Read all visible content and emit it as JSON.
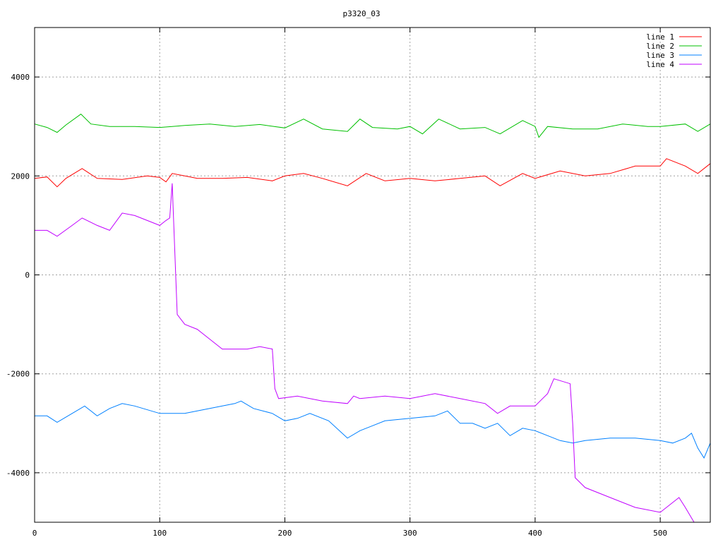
{
  "chart_data": {
    "type": "line",
    "title": "p3320_03",
    "xlabel": "",
    "ylabel": "",
    "xlim": [
      0,
      540
    ],
    "ylim": [
      -5000,
      5000
    ],
    "xticks": [
      0,
      100,
      200,
      300,
      400,
      500
    ],
    "yticks": [
      -4000,
      -2000,
      0,
      2000,
      4000
    ],
    "grid": true,
    "legend_position": "top-right",
    "series": [
      {
        "name": "line 1",
        "color": "#ff0000",
        "x": [
          0,
          10,
          18,
          25,
          38,
          50,
          70,
          90,
          100,
          105,
          110,
          130,
          150,
          170,
          190,
          200,
          215,
          230,
          250,
          265,
          280,
          300,
          320,
          340,
          360,
          372,
          390,
          400,
          420,
          440,
          460,
          480,
          500,
          505,
          520,
          530,
          540
        ],
        "y": [
          1950,
          1980,
          1780,
          1950,
          2150,
          1950,
          1930,
          2000,
          1970,
          1880,
          2050,
          1950,
          1950,
          1970,
          1900,
          2000,
          2050,
          1950,
          1800,
          2050,
          1900,
          1950,
          1900,
          1950,
          2000,
          1800,
          2050,
          1950,
          2100,
          2000,
          2050,
          2200,
          2200,
          2350,
          2200,
          2050,
          2250
        ]
      },
      {
        "name": "line 2",
        "color": "#00c000",
        "x": [
          0,
          10,
          18,
          25,
          37,
          45,
          60,
          80,
          100,
          120,
          140,
          160,
          180,
          200,
          215,
          230,
          250,
          260,
          270,
          290,
          300,
          310,
          323,
          340,
          360,
          372,
          390,
          400,
          403,
          410,
          430,
          450,
          470,
          490,
          500,
          520,
          530,
          540
        ],
        "y": [
          3050,
          2980,
          2880,
          3030,
          3250,
          3050,
          3000,
          3000,
          2980,
          3020,
          3050,
          3000,
          3040,
          2970,
          3150,
          2950,
          2900,
          3150,
          2980,
          2950,
          3000,
          2850,
          3150,
          2950,
          2980,
          2850,
          3120,
          3000,
          2780,
          3000,
          2950,
          2950,
          3050,
          3000,
          3000,
          3050,
          2900,
          3050
        ]
      },
      {
        "name": "line 3",
        "color": "#0080ff",
        "x": [
          0,
          10,
          18,
          30,
          40,
          50,
          60,
          70,
          80,
          100,
          120,
          140,
          150,
          160,
          165,
          175,
          190,
          200,
          210,
          220,
          235,
          250,
          260,
          270,
          280,
          300,
          320,
          330,
          340,
          350,
          360,
          370,
          380,
          390,
          400,
          410,
          420,
          430,
          440,
          460,
          480,
          500,
          510,
          520,
          525,
          530,
          535,
          540
        ],
        "y": [
          -2850,
          -2850,
          -2980,
          -2800,
          -2650,
          -2850,
          -2700,
          -2600,
          -2650,
          -2800,
          -2800,
          -2700,
          -2650,
          -2600,
          -2550,
          -2700,
          -2800,
          -2950,
          -2900,
          -2800,
          -2950,
          -3300,
          -3150,
          -3050,
          -2950,
          -2900,
          -2850,
          -2750,
          -3000,
          -3000,
          -3100,
          -3000,
          -3250,
          -3100,
          -3150,
          -3250,
          -3350,
          -3400,
          -3350,
          -3300,
          -3300,
          -3350,
          -3400,
          -3300,
          -3200,
          -3500,
          -3700,
          -3400
        ]
      },
      {
        "name": "line 4",
        "color": "#c000ff",
        "x": [
          0,
          10,
          18,
          30,
          38,
          50,
          60,
          70,
          80,
          90,
          100,
          105,
          108,
          110,
          112,
          114,
          120,
          130,
          140,
          150,
          170,
          180,
          190,
          192,
          195,
          210,
          230,
          250,
          255,
          260,
          280,
          300,
          320,
          340,
          360,
          370,
          380,
          400,
          410,
          415,
          428,
          430,
          432,
          440,
          460,
          480,
          500,
          510,
          515,
          520,
          527
        ],
        "y": [
          900,
          900,
          780,
          1000,
          1150,
          1000,
          900,
          1250,
          1200,
          1100,
          1000,
          1100,
          1150,
          1850,
          500,
          -800,
          -1000,
          -1100,
          -1300,
          -1500,
          -1500,
          -1450,
          -1500,
          -2300,
          -2500,
          -2450,
          -2550,
          -2600,
          -2450,
          -2500,
          -2450,
          -2500,
          -2400,
          -2500,
          -2600,
          -2800,
          -2650,
          -2650,
          -2400,
          -2100,
          -2200,
          -3000,
          -4100,
          -4300,
          -4500,
          -4700,
          -4800,
          -4600,
          -4500,
          -4700,
          -5000
        ]
      }
    ]
  }
}
